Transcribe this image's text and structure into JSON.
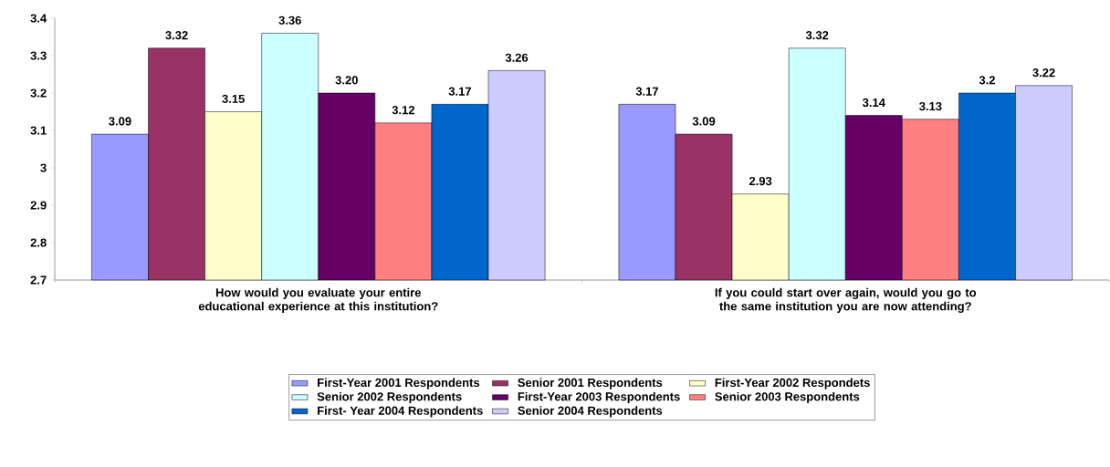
{
  "chart_data": {
    "type": "bar",
    "categories": [
      "How would you evaluate your entire educational experience at this institution?",
      "If you could start over again, would you go to the same institution you are now attending?"
    ],
    "series": [
      {
        "name": "First-Year 2001 Respondents",
        "color": "#9999ff",
        "values": [
          3.09,
          3.17
        ],
        "value_labels": [
          "3.09",
          "3.17"
        ]
      },
      {
        "name": "Senior 2001 Respondents",
        "color": "#993366",
        "values": [
          3.32,
          3.09
        ],
        "value_labels": [
          "3.32",
          "3.09"
        ]
      },
      {
        "name": "First-Year 2002 Respondets",
        "color": "#ffffcc",
        "values": [
          3.15,
          2.93
        ],
        "value_labels": [
          "3.15",
          "2.93"
        ]
      },
      {
        "name": "Senior 2002 Respondents",
        "color": "#ccffff",
        "values": [
          3.36,
          3.32
        ],
        "value_labels": [
          "3.36",
          "3.32"
        ]
      },
      {
        "name": "First-Year 2003 Respondents",
        "color": "#660066",
        "values": [
          3.2,
          3.14
        ],
        "value_labels": [
          "3.20",
          "3.14"
        ]
      },
      {
        "name": "Senior 2003 Respondents",
        "color": "#ff8080",
        "values": [
          3.12,
          3.13
        ],
        "value_labels": [
          "3.12",
          "3.13"
        ]
      },
      {
        "name": "First- Year 2004 Respondents",
        "color": "#0066cc",
        "values": [
          3.17,
          3.2
        ],
        "value_labels": [
          "3.17",
          "3.2"
        ]
      },
      {
        "name": "Senior 2004 Respondents",
        "color": "#ccccff",
        "values": [
          3.26,
          3.22
        ],
        "value_labels": [
          "3.26",
          "3.22"
        ]
      }
    ],
    "ylim": [
      2.7,
      3.4
    ],
    "yticks": [
      2.7,
      2.8,
      2.9,
      3,
      3.1,
      3.2,
      3.3,
      3.4
    ],
    "legend": "bottom"
  }
}
